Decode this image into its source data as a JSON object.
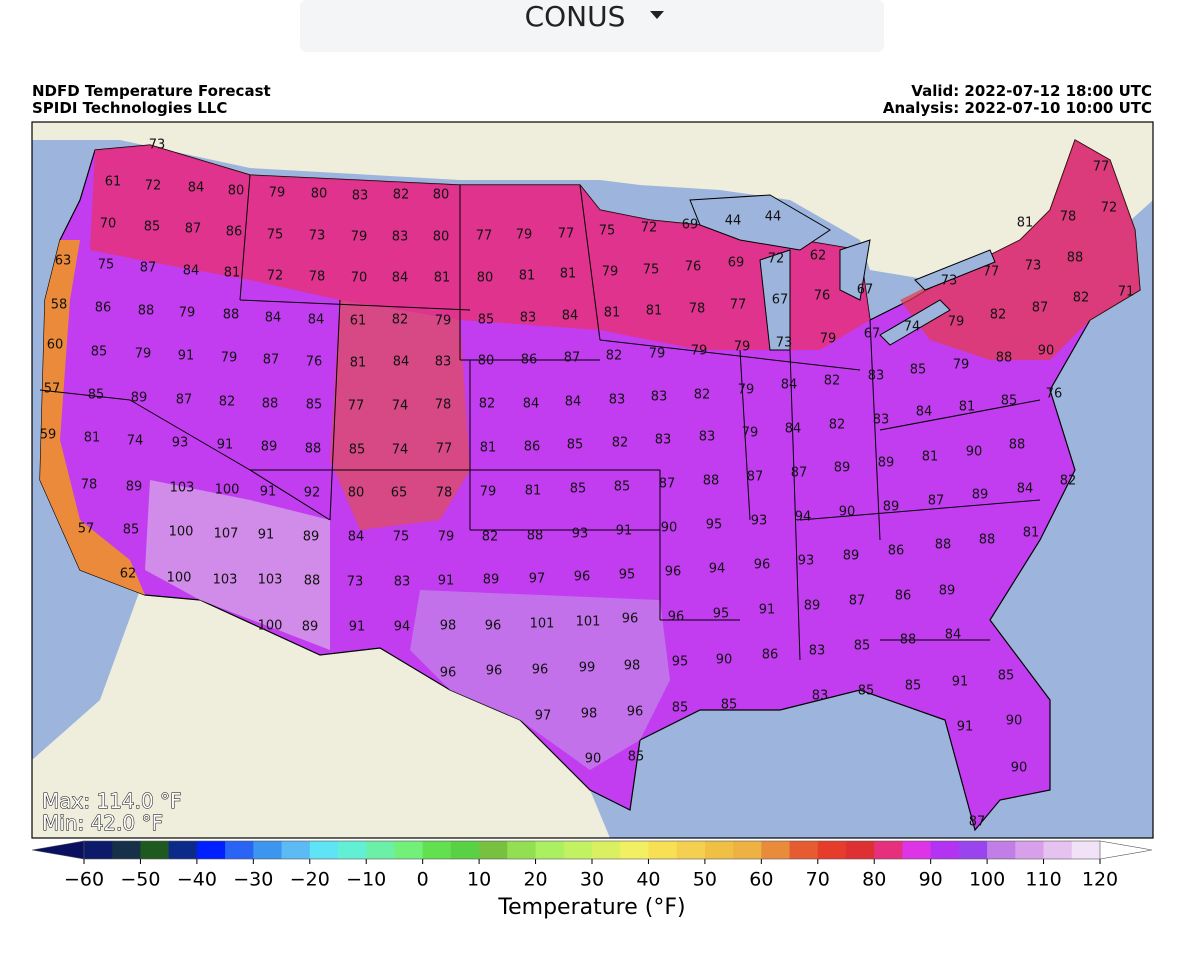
{
  "dropdown": {
    "label": "CONUS"
  },
  "header": {
    "title": "NDFD Temperature Forecast",
    "subtitle": "SPIDI Technologies LLC",
    "valid": "Valid: 2022-07-12 18:00 UTC",
    "analysis": "Analysis: 2022-07-10 10:00 UTC"
  },
  "stats": {
    "max": "Max: 114.0 °F",
    "min": "Min: 42.0 °F"
  },
  "colorbar": {
    "label": "Temperature (°F)",
    "ticks": [
      {
        "value": -60,
        "label": "−60"
      },
      {
        "value": -50,
        "label": "−50"
      },
      {
        "value": -40,
        "label": "−40"
      },
      {
        "value": -30,
        "label": "−30"
      },
      {
        "value": -20,
        "label": "−20"
      },
      {
        "value": -10,
        "label": "−10"
      },
      0,
      10,
      20,
      30,
      40,
      50,
      60,
      70,
      80,
      90,
      100,
      110,
      120
    ],
    "under_color": "#0a1060",
    "over_color": "#ffffff",
    "colors": [
      "#0d1a6a",
      "#16304a",
      "#1e5a20",
      "#0c2a8a",
      "#0020ff",
      "#2a64f5",
      "#3c96f0",
      "#5cbaf5",
      "#5ee4f5",
      "#62f0d4",
      "#6cf0a8",
      "#72f07a",
      "#62e050",
      "#5ad044",
      "#78c040",
      "#92e052",
      "#aaf060",
      "#c2f262",
      "#daf060",
      "#f2f062",
      "#f8e054",
      "#f5d050",
      "#f0c044",
      "#eeb242",
      "#e88c3c",
      "#e65c30",
      "#e63c2c",
      "#de3032",
      "#e6307e",
      "#dc34e6",
      "#b432f2",
      "#9a44ee",
      "#c07ee6",
      "#d8a0ea",
      "#e6c2f0",
      "#f2e2f8"
    ]
  },
  "stations": [
    [
      73,
      61,
      72,
      84,
      80,
      79,
      80,
      83,
      82,
      80
    ],
    [
      70,
      85,
      87,
      86,
      75,
      73,
      79,
      83,
      80,
      77,
      79,
      77,
      75,
      72,
      69,
      44,
      44,
      81,
      78,
      77,
      72
    ],
    [
      63,
      75,
      87,
      84,
      81,
      72,
      78,
      70,
      84,
      81,
      80,
      81,
      81,
      79,
      75,
      76,
      69,
      72,
      62,
      73,
      77,
      73,
      88,
      71,
      82
    ],
    [
      58,
      86,
      88,
      79,
      88,
      84,
      84,
      61,
      82,
      79,
      85,
      83,
      84,
      81,
      81,
      78,
      77,
      67,
      76,
      67,
      74,
      79,
      82,
      87,
      67
    ],
    [
      60,
      85,
      79,
      91,
      79,
      87,
      76,
      81,
      84,
      83,
      80,
      86,
      87,
      82,
      79,
      79,
      79,
      73,
      79,
      83,
      85,
      79,
      88,
      90
    ],
    [
      57,
      85,
      89,
      87,
      82,
      88,
      85,
      77,
      74,
      78,
      82,
      84,
      84,
      83,
      83,
      82,
      79,
      84,
      82,
      76,
      84,
      81,
      85
    ],
    [
      59,
      81,
      74,
      93,
      91,
      89,
      88,
      85,
      74,
      77,
      81,
      86,
      85,
      82,
      83,
      83,
      79,
      84,
      82,
      83,
      81,
      90,
      88
    ],
    [
      78,
      89,
      103,
      100,
      91,
      92,
      80,
      65,
      78,
      79,
      81,
      85,
      85,
      87,
      88,
      87,
      87,
      89,
      89,
      82,
      84,
      89,
      87
    ],
    [
      57,
      85,
      100,
      107,
      91,
      89,
      84,
      75,
      79,
      82,
      88,
      93,
      91,
      90,
      95,
      93,
      94,
      90,
      89,
      88,
      88,
      81
    ],
    [
      62,
      100,
      103,
      103,
      88,
      73,
      83,
      91,
      89,
      97,
      96,
      95,
      96,
      94,
      96,
      93,
      89,
      86,
      89,
      86,
      87,
      89,
      91
    ],
    [
      100,
      89,
      91,
      94,
      98,
      96,
      101,
      101,
      96,
      96,
      95,
      84,
      88,
      85,
      83,
      86,
      90,
      95
    ],
    [
      96,
      96,
      96,
      99,
      98,
      85,
      91,
      85,
      85,
      83
    ],
    [
      97,
      98,
      96,
      85,
      85,
      85,
      90,
      91,
      90,
      90,
      87
    ]
  ]
}
